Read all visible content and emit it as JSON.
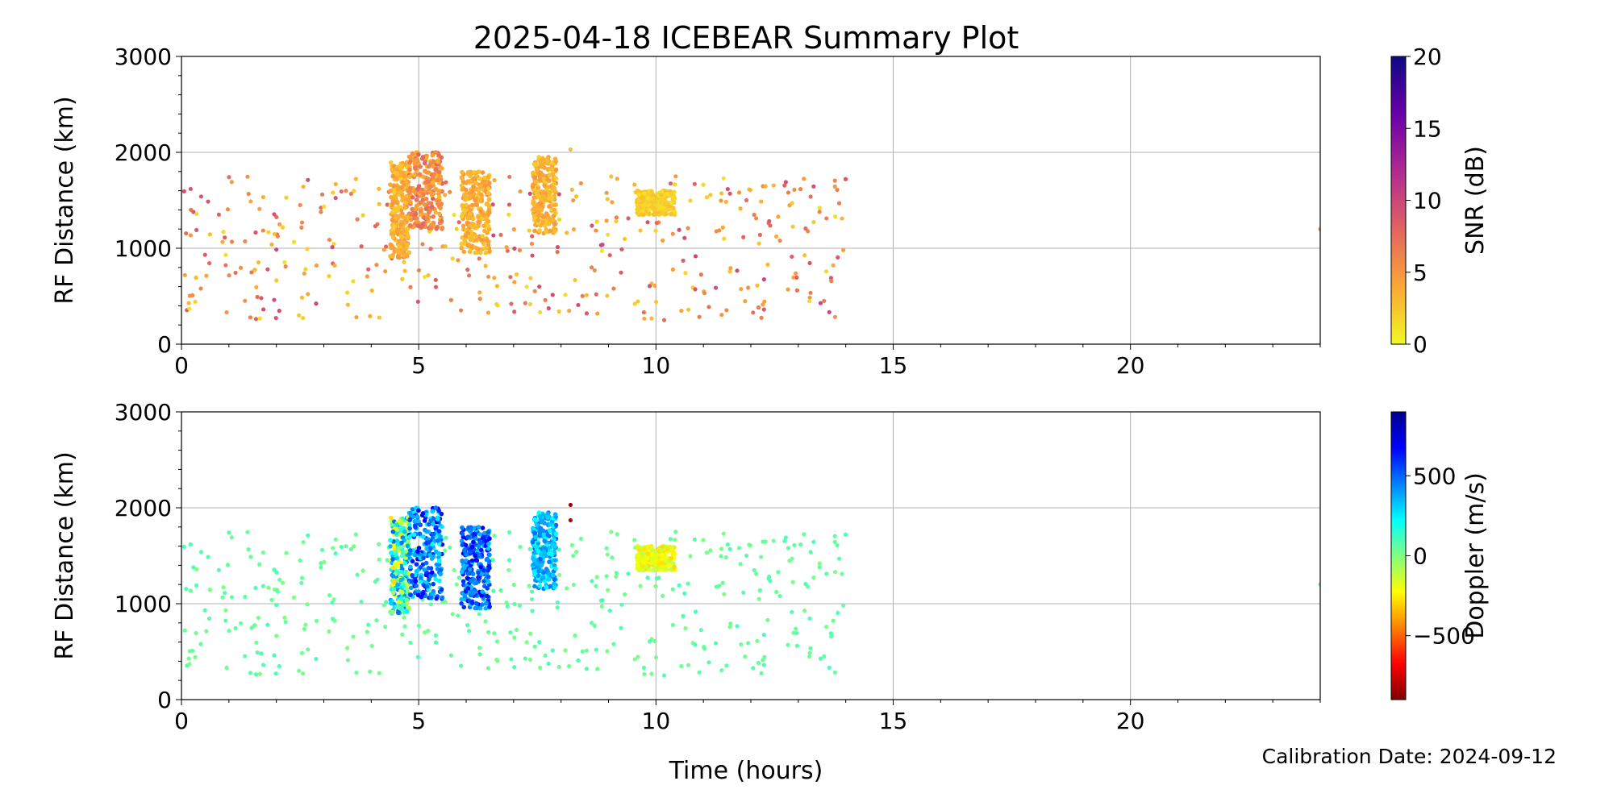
{
  "figure": {
    "title": "2025-04-18 ICEBEAR Summary Plot",
    "xlabel": "Time (hours)",
    "footer": "Calibration Date: 2024-09-12"
  },
  "chart_data": [
    {
      "type": "scatter",
      "panel": "top",
      "xlabel": "",
      "ylabel": "RF Distance (km)",
      "xlim": [
        0,
        24
      ],
      "ylim": [
        0,
        3000
      ],
      "x_ticks": [
        0,
        5,
        10,
        15,
        20
      ],
      "y_ticks": [
        0,
        1000,
        2000,
        3000
      ],
      "grid": true,
      "colorbar": {
        "label": "SNR (dB)",
        "range": [
          0,
          20
        ],
        "ticks": [
          0,
          5,
          10,
          15,
          20
        ],
        "tick_labels": [
          "0",
          "5",
          "10",
          "15",
          "20"
        ],
        "colormap": "plasma_r",
        "stops": [
          "#f0f921",
          "#fca636",
          "#e16462",
          "#b12a90",
          "#6a00a8",
          "#0d0887"
        ]
      },
      "clusters": [
        {
          "x": [
            4.4,
            4.8
          ],
          "y": [
            900,
            1900
          ],
          "value": [
            2,
            5
          ]
        },
        {
          "x": [
            4.8,
            5.5
          ],
          "y": [
            1200,
            2000
          ],
          "value": [
            3,
            8
          ]
        },
        {
          "x": [
            5.9,
            6.5
          ],
          "y": [
            950,
            1800
          ],
          "value": [
            2,
            5
          ]
        },
        {
          "x": [
            7.4,
            7.9
          ],
          "y": [
            1150,
            1950
          ],
          "value": [
            2,
            5
          ]
        },
        {
          "x": [
            9.6,
            10.4
          ],
          "y": [
            1350,
            1600
          ],
          "value": [
            1,
            3
          ]
        }
      ],
      "scatter_range": {
        "x": [
          0,
          14
        ],
        "y": [
          250,
          1750
        ],
        "value": [
          1,
          10
        ]
      },
      "notable_points": [
        {
          "x": 0.2,
          "y": 1400,
          "value": 7
        },
        {
          "x": 24,
          "y": 1200,
          "value": 5
        },
        {
          "x": 8.2,
          "y": 2030,
          "value": 3
        }
      ]
    },
    {
      "type": "scatter",
      "panel": "bottom",
      "xlabel": "Time (hours)",
      "ylabel": "RF Distance (km)",
      "xlim": [
        0,
        24
      ],
      "ylim": [
        0,
        3000
      ],
      "x_ticks": [
        0,
        5,
        10,
        15,
        20
      ],
      "y_ticks": [
        0,
        1000,
        2000,
        3000
      ],
      "grid": true,
      "colorbar": {
        "label": "Doppler (m/s)",
        "range": [
          -900,
          900
        ],
        "ticks": [
          -500,
          0,
          500
        ],
        "tick_labels": [
          "−500",
          "0",
          "500"
        ],
        "colormap": "jet_r",
        "stops": [
          "#800000",
          "#ff0000",
          "#ff8000",
          "#ffff00",
          "#80ff80",
          "#00ffff",
          "#0080ff",
          "#0000ff",
          "#00008f"
        ]
      },
      "clusters": [
        {
          "x": [
            4.4,
            4.8
          ],
          "y": [
            900,
            1900
          ],
          "value": [
            -300,
            500
          ]
        },
        {
          "x": [
            4.8,
            5.5
          ],
          "y": [
            1050,
            2000
          ],
          "value": [
            200,
            700
          ]
        },
        {
          "x": [
            5.9,
            6.5
          ],
          "y": [
            950,
            1800
          ],
          "value": [
            300,
            700
          ]
        },
        {
          "x": [
            7.4,
            7.9
          ],
          "y": [
            1150,
            1950
          ],
          "value": [
            200,
            500
          ]
        },
        {
          "x": [
            9.6,
            10.4
          ],
          "y": [
            1350,
            1600
          ],
          "value": [
            -300,
            -100
          ]
        }
      ],
      "scatter_range": {
        "x": [
          0,
          14
        ],
        "y": [
          250,
          1750
        ],
        "value": [
          0,
          100
        ]
      },
      "notable_points": [
        {
          "x": 8.2,
          "y": 2030,
          "value": -850
        },
        {
          "x": 8.2,
          "y": 1870,
          "value": -800
        },
        {
          "x": 24,
          "y": 1200,
          "value": 50
        }
      ]
    }
  ]
}
